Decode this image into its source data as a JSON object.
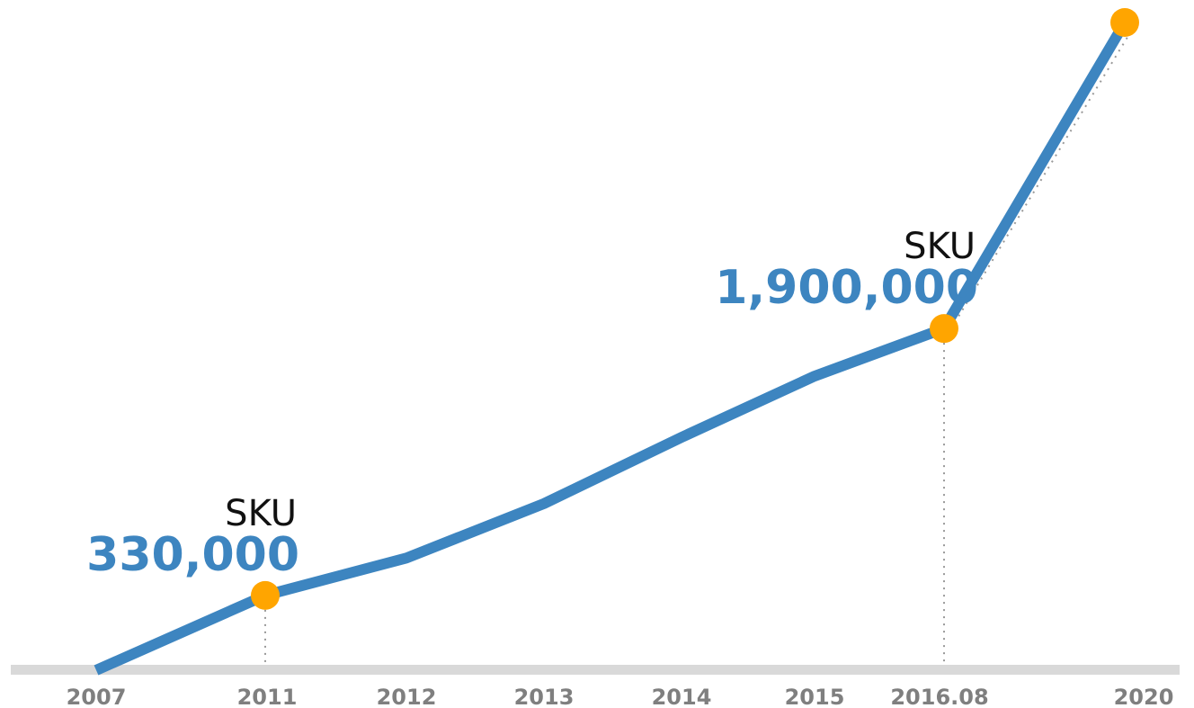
{
  "chart_data": {
    "type": "line",
    "categories": [
      "2007",
      "2011",
      "2012",
      "2013",
      "2014",
      "2015",
      "2016.08",
      "2020"
    ],
    "series": [
      {
        "color": "#3d85c0",
        "values": [
          -110000,
          330000,
          550000,
          870000,
          1260000,
          1620000,
          1900000,
          3700000
        ],
        "value_labels": [
          null,
          "330,000",
          null,
          null,
          null,
          null,
          "1,900,000",
          null
        ],
        "annotations": [
          null,
          "SKU",
          null,
          null,
          null,
          null,
          "SKU",
          null
        ],
        "markers": [
          false,
          true,
          false,
          false,
          false,
          false,
          true,
          true
        ],
        "marker_color": "#ffa500"
      }
    ],
    "ylim": [
      -110000,
      3700000
    ]
  }
}
